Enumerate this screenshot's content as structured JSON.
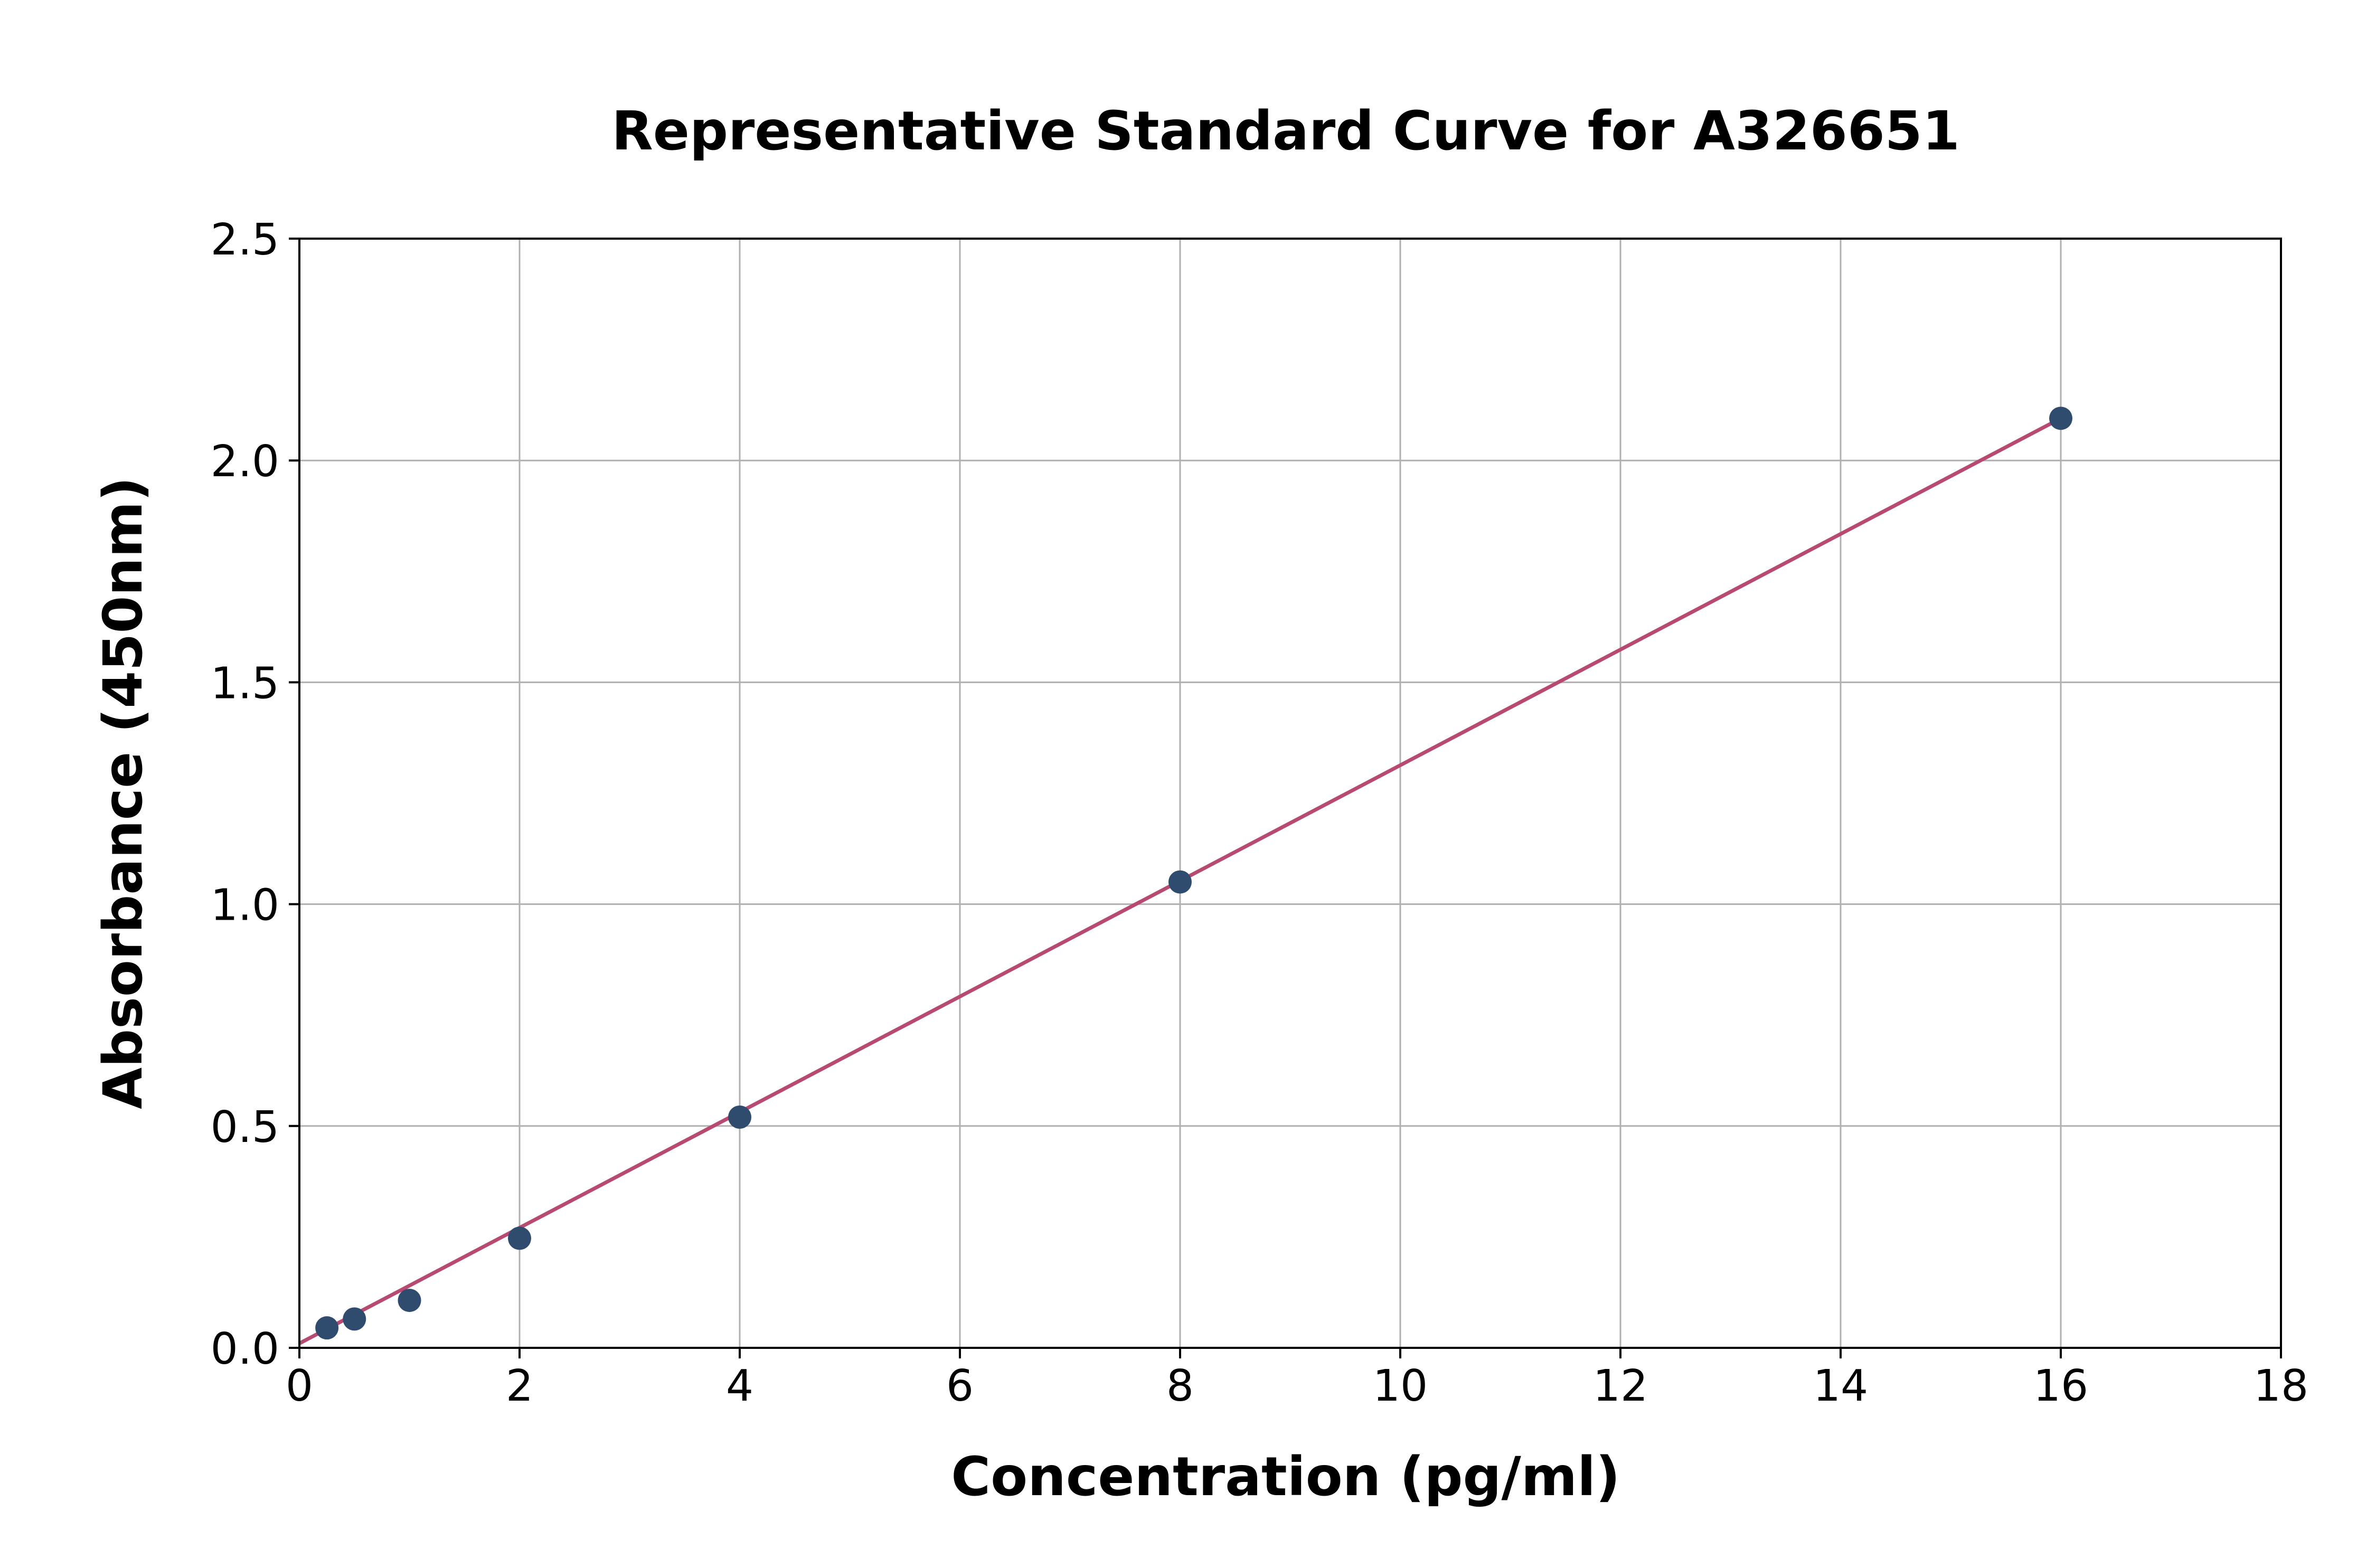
{
  "chart_data": {
    "type": "scatter",
    "title": "Representative Standard Curve for A326651",
    "xlabel": "Concentration (pg/ml)",
    "ylabel": "Absorbance (450nm)",
    "xlim": [
      0,
      18
    ],
    "ylim": [
      0,
      2.5
    ],
    "xticks": [
      0,
      2,
      4,
      6,
      8,
      10,
      12,
      14,
      16,
      18
    ],
    "xtick_labels": [
      "0",
      "2",
      "4",
      "6",
      "8",
      "10",
      "12",
      "14",
      "16",
      "18"
    ],
    "yticks": [
      0,
      0.5,
      1.0,
      1.5,
      2.0,
      2.5
    ],
    "ytick_labels": [
      "0.0",
      "0.5",
      "1.0",
      "1.5",
      "2.0",
      "2.5"
    ],
    "grid": true,
    "series": [
      {
        "kind": "points",
        "color": "#2f4b6e",
        "x": [
          0.25,
          0.5,
          1,
          2,
          4,
          8,
          16
        ],
        "y": [
          0.045,
          0.065,
          0.107,
          0.247,
          0.52,
          1.05,
          2.095
        ]
      },
      {
        "kind": "fit-line",
        "color": "#b84a72",
        "x": [
          0,
          16
        ],
        "y": [
          0.01,
          2.095
        ]
      }
    ]
  }
}
